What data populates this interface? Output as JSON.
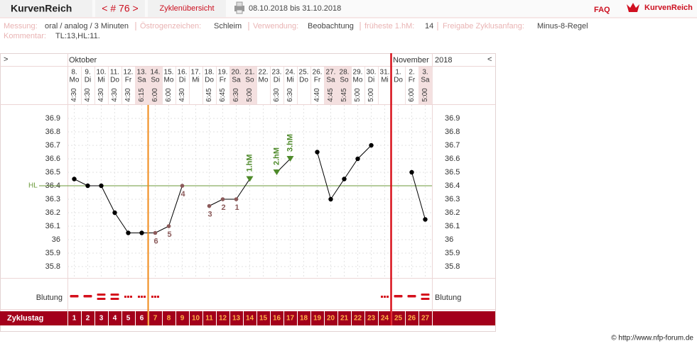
{
  "header": {
    "app_title": "KurvenReich",
    "cycle_nav": "< # 76 >",
    "overview_link": "Zyklenübersicht",
    "date_range": "08.10.2018 bis 31.10.2018",
    "faq": "FAQ",
    "logo_text": "KurvenReich"
  },
  "info": {
    "items": [
      {
        "label": "Messung:",
        "value": "oral / analog / 3 Minuten"
      },
      {
        "label": "Östrogenzeichen:",
        "value": "Schleim"
      },
      {
        "label": "Verwendung:",
        "value": "Beobachtung"
      },
      {
        "label": "früheste 1.hM:",
        "value": "14"
      },
      {
        "label": "Freigabe Zyklusanfang:",
        "value": "Minus-8-Regel"
      }
    ],
    "comment_label": "Kommentar:",
    "comment": "TL:13,HL:11."
  },
  "chart_data": {
    "type": "line",
    "nav_prev": ">",
    "nav_next": "<",
    "year": "2018",
    "month_labels": [
      "Oktober",
      "November"
    ],
    "days": [
      {
        "date": "8.",
        "weekday": "Mo",
        "time": "4:30",
        "shaded": false
      },
      {
        "date": "9.",
        "weekday": "Di",
        "time": "4:30",
        "shaded": false
      },
      {
        "date": "10.",
        "weekday": "Mi",
        "time": "4:30",
        "shaded": false
      },
      {
        "date": "11.",
        "weekday": "Do",
        "time": "4:30",
        "shaded": false
      },
      {
        "date": "12.",
        "weekday": "Fr",
        "time": "4:30",
        "shaded": false
      },
      {
        "date": "13.",
        "weekday": "Sa",
        "time": "6:15",
        "shaded": true
      },
      {
        "date": "14.",
        "weekday": "So",
        "time": "6:00",
        "shaded": true
      },
      {
        "date": "15.",
        "weekday": "Mo",
        "time": "6:00",
        "shaded": false
      },
      {
        "date": "16.",
        "weekday": "Di",
        "time": "4:30",
        "shaded": false
      },
      {
        "date": "17.",
        "weekday": "Mi",
        "time": null,
        "shaded": false
      },
      {
        "date": "18.",
        "weekday": "Do",
        "time": "6:45",
        "shaded": false
      },
      {
        "date": "19.",
        "weekday": "Fr",
        "time": "6:45",
        "shaded": false
      },
      {
        "date": "20.",
        "weekday": "Sa",
        "time": "6:30",
        "shaded": true
      },
      {
        "date": "21.",
        "weekday": "So",
        "time": "5:00",
        "shaded": true
      },
      {
        "date": "22.",
        "weekday": "Mo",
        "time": null,
        "shaded": false
      },
      {
        "date": "23.",
        "weekday": "Di",
        "time": "6:30",
        "shaded": false
      },
      {
        "date": "24.",
        "weekday": "Mi",
        "time": "6:30",
        "shaded": false
      },
      {
        "date": "25.",
        "weekday": "Do",
        "time": null,
        "shaded": false
      },
      {
        "date": "26.",
        "weekday": "Fr",
        "time": "4:40",
        "shaded": false
      },
      {
        "date": "27.",
        "weekday": "Sa",
        "time": "4:45",
        "shaded": true
      },
      {
        "date": "28.",
        "weekday": "So",
        "time": "5:45",
        "shaded": true
      },
      {
        "date": "29.",
        "weekday": "Mo",
        "time": "5:00",
        "shaded": false
      },
      {
        "date": "30.",
        "weekday": "Di",
        "time": "5:00",
        "shaded": false
      },
      {
        "date": "31.",
        "weekday": "Mi",
        "time": null,
        "shaded": false
      },
      {
        "date": "1.",
        "weekday": "Do",
        "time": null,
        "shaded": false
      },
      {
        "date": "2.",
        "weekday": "Fr",
        "time": "6:00",
        "shaded": false
      },
      {
        "date": "3.",
        "weekday": "Sa",
        "time": "5:00",
        "shaded": true
      }
    ],
    "cycle_day_label": "Zyklustag",
    "categories": [
      1,
      2,
      3,
      4,
      5,
      6,
      7,
      8,
      9,
      10,
      11,
      12,
      13,
      14,
      15,
      16,
      17,
      18,
      19,
      20,
      21,
      22,
      23,
      24,
      25,
      26,
      27
    ],
    "cycle_day_colors": [
      "#ffffff",
      "#ffffff",
      "#ffffff",
      "#ffffff",
      "#ffffff",
      "#ffffff",
      "#ffb347",
      "#ffb347",
      "#ffb347",
      "#ffb347",
      "#ffb347",
      "#ffb347",
      "#ffb347",
      "#ffb347",
      "#ffb347",
      "#ffb347",
      "#ffb347",
      "#ffb347",
      "#ffb347",
      "#ffb347",
      "#ffb347",
      "#ffb347",
      "#ffb347",
      "#ffb347",
      "#ffb347",
      "#ffb347",
      "#ffb347"
    ],
    "values": [
      36.45,
      36.4,
      36.4,
      36.2,
      36.05,
      36.05,
      36.05,
      36.1,
      36.4,
      null,
      36.25,
      36.3,
      36.3,
      36.45,
      null,
      36.5,
      36.6,
      null,
      36.65,
      36.3,
      36.45,
      36.6,
      36.7,
      null,
      null,
      36.5,
      36.15
    ],
    "markers": [
      "dot",
      "dot",
      "dot",
      "dot",
      "dot",
      "dot",
      "counted",
      "counted",
      "counted",
      null,
      "counted",
      "counted",
      "counted",
      "rise",
      null,
      "rise",
      "rise",
      null,
      "dot",
      "dot",
      "dot",
      "dot",
      "dot",
      null,
      null,
      "dot",
      "dot"
    ],
    "marker_colors": {
      "dot": "#000000",
      "counted": "#8b5a5a",
      "rise": "#4e8a2a"
    },
    "point_labels": [
      null,
      null,
      null,
      null,
      null,
      null,
      "6",
      "5",
      "4",
      null,
      "3",
      "2",
      "1",
      "1.hM",
      null,
      "2.hM",
      "3.hM",
      null,
      null,
      null,
      null,
      null,
      null,
      null,
      null,
      null,
      null
    ],
    "color": "#000000",
    "ylim": [
      35.7,
      37.0
    ],
    "yticks": [
      35.8,
      35.9,
      36,
      36.1,
      36.2,
      36.3,
      36.4,
      36.5,
      36.6,
      36.7,
      36.8,
      36.9
    ],
    "hl": {
      "value": 36.4,
      "label": "HL",
      "color": "#6b9a3a"
    },
    "bleeding_label": "Blutung",
    "bleeding": [
      2,
      2,
      3,
      3,
      1,
      1,
      1,
      null,
      null,
      null,
      null,
      null,
      null,
      null,
      null,
      null,
      null,
      null,
      null,
      null,
      null,
      null,
      null,
      1,
      2,
      2,
      3
    ],
    "bleeding_color": "#d4101c"
  },
  "footer": {
    "credit": "© http://www.nfp-forum.de"
  }
}
